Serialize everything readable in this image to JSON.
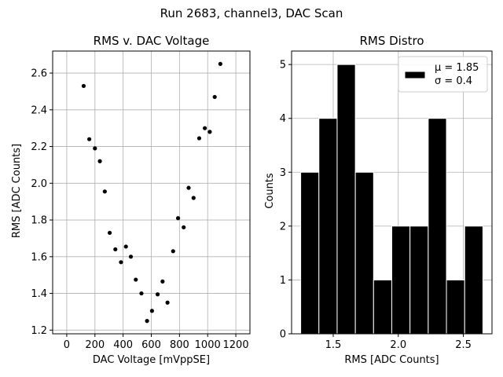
{
  "suptitle": "Run 2683, channel3, DAC Scan",
  "chart_data": [
    {
      "type": "scatter",
      "title": "RMS v. DAC Voltage",
      "xlabel": "DAC Voltage [mVppSE]",
      "ylabel": "RMS [ADC Counts]",
      "xlim": [
        -100,
        1300
      ],
      "ylim": [
        1.18,
        2.72
      ],
      "xticks": [
        0,
        200,
        400,
        600,
        800,
        1000,
        1200
      ],
      "xtick_labels": [
        "0",
        "200",
        "400",
        "600",
        "800",
        "1000",
        "1200"
      ],
      "yticks": [
        1.2,
        1.4,
        1.6,
        1.8,
        2.0,
        2.2,
        2.4,
        2.6
      ],
      "ytick_labels": [
        "1.2",
        "1.4",
        "1.6",
        "1.8",
        "2.0",
        "2.2",
        "2.4",
        "2.6"
      ],
      "grid": true,
      "marker_color": "#000000",
      "points": [
        {
          "x": 120,
          "y": 2.53
        },
        {
          "x": 160,
          "y": 2.24
        },
        {
          "x": 200,
          "y": 2.19
        },
        {
          "x": 235,
          "y": 2.12
        },
        {
          "x": 270,
          "y": 1.955
        },
        {
          "x": 305,
          "y": 1.73
        },
        {
          "x": 345,
          "y": 1.64
        },
        {
          "x": 385,
          "y": 1.57
        },
        {
          "x": 420,
          "y": 1.655
        },
        {
          "x": 455,
          "y": 1.6
        },
        {
          "x": 490,
          "y": 1.475
        },
        {
          "x": 530,
          "y": 1.4
        },
        {
          "x": 570,
          "y": 1.25
        },
        {
          "x": 605,
          "y": 1.305
        },
        {
          "x": 645,
          "y": 1.395
        },
        {
          "x": 680,
          "y": 1.465
        },
        {
          "x": 715,
          "y": 1.35
        },
        {
          "x": 755,
          "y": 1.63
        },
        {
          "x": 790,
          "y": 1.81
        },
        {
          "x": 830,
          "y": 1.76
        },
        {
          "x": 865,
          "y": 1.975
        },
        {
          "x": 900,
          "y": 1.92
        },
        {
          "x": 940,
          "y": 2.245
        },
        {
          "x": 980,
          "y": 2.3
        },
        {
          "x": 1015,
          "y": 2.28
        },
        {
          "x": 1050,
          "y": 2.47
        },
        {
          "x": 1090,
          "y": 2.65
        }
      ]
    },
    {
      "type": "bar",
      "title": "RMS Distro",
      "xlabel": "RMS [ADC Counts]",
      "ylabel": "Counts",
      "xlim": [
        1.18,
        2.72
      ],
      "ylim": [
        0,
        5.25
      ],
      "xticks": [
        1.5,
        2.0,
        2.5
      ],
      "xtick_labels": [
        "1.5",
        "2.0",
        "2.5"
      ],
      "yticks": [
        0,
        1,
        2,
        3,
        4,
        5
      ],
      "ytick_labels": [
        "0",
        "1",
        "2",
        "3",
        "4",
        "5"
      ],
      "grid": true,
      "bar_color": "#000000",
      "bar_edge_color": "#ffffff",
      "bin_edges": [
        1.25,
        1.39,
        1.53,
        1.67,
        1.81,
        1.95,
        2.09,
        2.23,
        2.37,
        2.51,
        2.65
      ],
      "counts": [
        3,
        4,
        5,
        3,
        1,
        2,
        2,
        4,
        1,
        2
      ],
      "legend": {
        "placement": "top-right",
        "lines": [
          "μ = 1.85",
          "σ = 0.4"
        ]
      }
    }
  ]
}
